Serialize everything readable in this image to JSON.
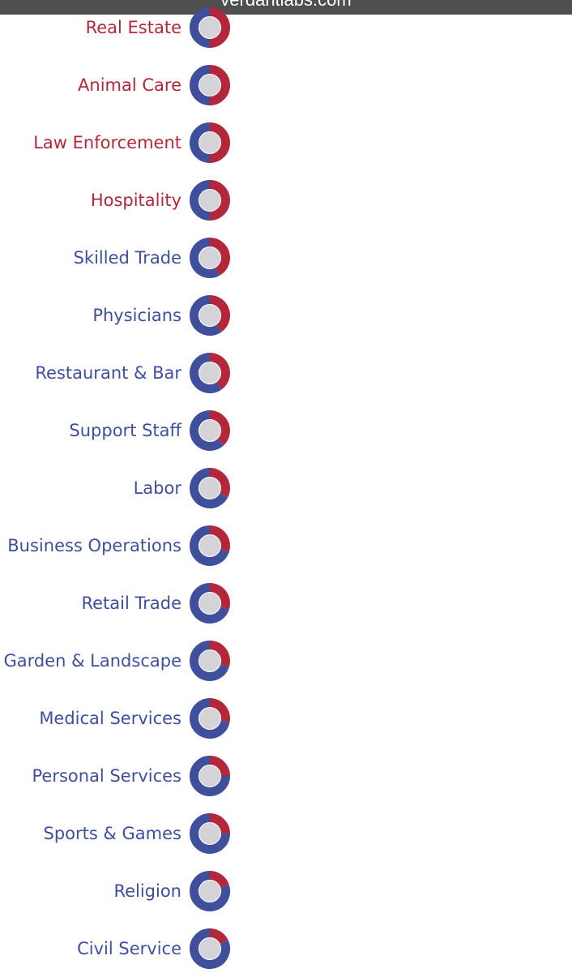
{
  "browser": {
    "url": "verdantlabs.com"
  },
  "colors": {
    "red_side": "#b3273a",
    "blue_side": "#3f4f9c",
    "ring_hole": "#d4d4d8",
    "url_bar": "#4f4f4f"
  },
  "chart_data": {
    "type": "pie",
    "subtype": "donut-per-category",
    "legend": "none",
    "series": [
      {
        "values": [
          50,
          50,
          50,
          50,
          42,
          40,
          40,
          38,
          32,
          30,
          30,
          30,
          28,
          25,
          25,
          20,
          18
        ]
      },
      {
        "values": [
          50,
          50,
          50,
          50,
          58,
          60,
          60,
          62,
          68,
          70,
          70,
          70,
          72,
          75,
          75,
          80,
          82
        ]
      }
    ],
    "categories": [
      "Real Estate",
      "Animal Care",
      "Law Enforcement",
      "Hospitality",
      "Skilled Trade",
      "Physicians",
      "Restaurant & Bar",
      "Support Staff",
      "Labor",
      "Business Operations",
      "Retail Trade",
      "Garden & Landscape",
      "Medical Services",
      "Personal Services",
      "Sports & Games",
      "Religion",
      "Civil Service"
    ],
    "label_color": [
      "red",
      "red",
      "red",
      "red",
      "blue",
      "blue",
      "blue",
      "blue",
      "blue",
      "blue",
      "blue",
      "blue",
      "blue",
      "blue",
      "blue",
      "blue",
      "blue"
    ]
  }
}
